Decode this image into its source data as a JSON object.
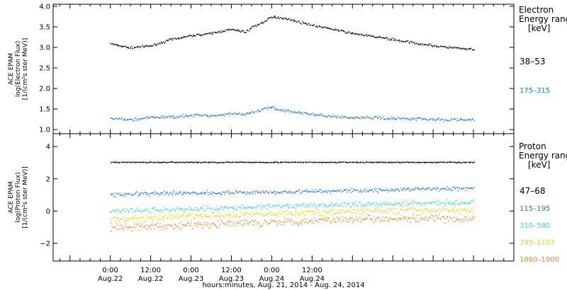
{
  "chart_data": [
    {
      "type": "scatter",
      "panel": "electron",
      "ylabel_lines": [
        "ACE EPAM",
        "log(Electron Flux)",
        "[1/(cm²s ster MeV)]"
      ],
      "ylim": [
        0.9,
        4.05
      ],
      "yticks": [
        1.0,
        1.5,
        2.0,
        2.5,
        3.0,
        3.5,
        4.0
      ],
      "ytick_labels": [
        "1.0",
        "1.5",
        "2.0",
        "2.5",
        "3.0",
        "3.5",
        "4.0"
      ],
      "legend_title": [
        "Electron",
        "Energy range",
        "[keV]"
      ],
      "series": [
        {
          "name": "38–53",
          "color": "#000000",
          "x": [
            0,
            6,
            12,
            18,
            24,
            30,
            36,
            40,
            42,
            46,
            48,
            52,
            55,
            60,
            66,
            72,
            78,
            84,
            90,
            96,
            102,
            108
          ],
          "values": [
            3.1,
            3.0,
            3.05,
            3.2,
            3.3,
            3.35,
            3.45,
            3.38,
            3.5,
            3.65,
            3.75,
            3.72,
            3.65,
            3.55,
            3.45,
            3.35,
            3.28,
            3.2,
            3.12,
            3.05,
            3.0,
            2.95
          ]
        },
        {
          "name": "175–315",
          "color": "#1e78d2",
          "x": [
            0,
            6,
            12,
            18,
            24,
            30,
            36,
            40,
            44,
            46,
            48,
            50,
            54,
            60,
            66,
            72,
            78,
            84,
            90,
            96,
            102,
            108
          ],
          "values": [
            1.28,
            1.25,
            1.3,
            1.32,
            1.36,
            1.35,
            1.4,
            1.38,
            1.46,
            1.52,
            1.55,
            1.5,
            1.45,
            1.38,
            1.33,
            1.3,
            1.3,
            1.28,
            1.28,
            1.26,
            1.25,
            1.25
          ]
        }
      ]
    },
    {
      "type": "scatter",
      "panel": "proton",
      "ylabel_lines": [
        "ACE EPAM",
        "log(Proton Flux)",
        "[1/(cm²s ster MeV)]"
      ],
      "ylim": [
        -3.1,
        4.8
      ],
      "yticks": [
        -2,
        0,
        2,
        4
      ],
      "ytick_labels": [
        "−2",
        "0",
        "2",
        "4"
      ],
      "legend_title": [
        "Proton",
        "Energy range",
        "[keV]"
      ],
      "series": [
        {
          "name": "47–68",
          "color": "#000000",
          "x": [
            0,
            24,
            48,
            72,
            96,
            108
          ],
          "values": [
            3.05,
            3.05,
            3.05,
            3.05,
            3.05,
            3.05
          ]
        },
        {
          "name": "115–195",
          "color": "#1e78d2",
          "x": [
            0,
            24,
            48,
            72,
            96,
            108
          ],
          "values": [
            1.05,
            1.15,
            1.2,
            1.3,
            1.4,
            1.45
          ]
        },
        {
          "name": "310–580",
          "color": "#2ed8c8",
          "x": [
            0,
            24,
            48,
            72,
            96,
            108
          ],
          "values": [
            0.05,
            0.15,
            0.3,
            0.45,
            0.55,
            0.55
          ]
        },
        {
          "name": "795–1193",
          "color": "#dcdc00",
          "x": [
            0,
            24,
            48,
            72,
            96,
            108
          ],
          "values": [
            -0.5,
            -0.3,
            -0.15,
            0.0,
            0.1,
            0.1
          ]
        },
        {
          "name": "1060–1900",
          "color": "#e08a1e",
          "x": [
            0,
            24,
            48,
            72,
            96,
            108
          ],
          "values": [
            -1.0,
            -0.85,
            -0.65,
            -0.45,
            -0.45,
            -0.5
          ]
        }
      ]
    }
  ],
  "x_axis": {
    "title": "hours:minutes, Aug. 21, 2014 - Aug. 24, 2014",
    "xlim": [
      -17,
      120
    ],
    "ticks": [
      {
        "x": 0,
        "time": "0:00",
        "date": "Aug.22"
      },
      {
        "x": 12,
        "time": "12:00",
        "date": "Aug.22"
      },
      {
        "x": 24,
        "time": "0:00",
        "date": "Aug.23"
      },
      {
        "x": 36,
        "time": "12:00",
        "date": "Aug.23"
      },
      {
        "x": 48,
        "time": "0:00",
        "date": "Aug.24"
      },
      {
        "x": 60,
        "time": "12:00",
        "date": "Aug.24"
      }
    ]
  }
}
